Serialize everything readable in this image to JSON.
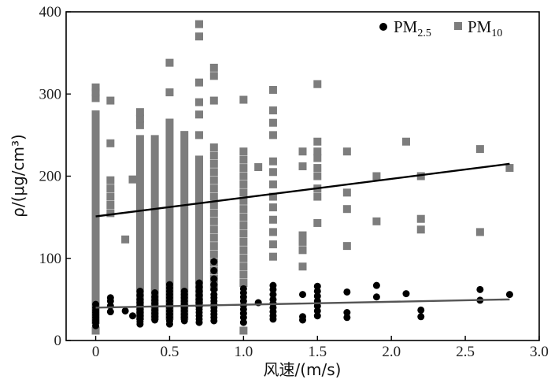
{
  "chart_data": {
    "type": "scatter",
    "xlabel": "风速/(m/s)",
    "ylabel": "ρ/(μg/cm³)",
    "xlim": [
      -0.2,
      3.0
    ],
    "ylim": [
      0,
      400
    ],
    "xticks": [
      "0",
      "0.5",
      "1.0",
      "1.5",
      "2.0",
      "2.5",
      "3.0"
    ],
    "xtick_values": [
      0,
      0.5,
      1.0,
      1.5,
      2.0,
      2.5,
      3.0
    ],
    "yticks": [
      "0",
      "100",
      "200",
      "300",
      "400"
    ],
    "ytick_values": [
      0,
      100,
      200,
      300,
      400
    ],
    "grid": false,
    "legend_position": "top-right",
    "series": [
      {
        "name": "PM2.5",
        "legend_main": "PM",
        "legend_sub": "2.5",
        "marker": "circle",
        "color": "#000000",
        "points": [
          [
            0,
            18
          ],
          [
            0,
            22
          ],
          [
            0,
            25
          ],
          [
            0,
            28
          ],
          [
            0,
            31
          ],
          [
            0,
            34
          ],
          [
            0,
            37
          ],
          [
            0,
            40
          ],
          [
            0,
            44
          ],
          [
            0.1,
            35
          ],
          [
            0.1,
            42
          ],
          [
            0.1,
            48
          ],
          [
            0.1,
            52
          ],
          [
            0.2,
            36
          ],
          [
            0.25,
            30
          ],
          [
            0.3,
            20
          ],
          [
            0.3,
            23
          ],
          [
            0.3,
            26
          ],
          [
            0.3,
            30
          ],
          [
            0.3,
            34
          ],
          [
            0.3,
            38
          ],
          [
            0.3,
            42
          ],
          [
            0.3,
            46
          ],
          [
            0.3,
            50
          ],
          [
            0.3,
            55
          ],
          [
            0.3,
            60
          ],
          [
            0.4,
            25
          ],
          [
            0.4,
            29
          ],
          [
            0.4,
            33
          ],
          [
            0.4,
            37
          ],
          [
            0.4,
            41
          ],
          [
            0.4,
            45
          ],
          [
            0.4,
            49
          ],
          [
            0.4,
            53
          ],
          [
            0.4,
            58
          ],
          [
            0.5,
            20
          ],
          [
            0.5,
            24
          ],
          [
            0.5,
            28
          ],
          [
            0.5,
            32
          ],
          [
            0.5,
            36
          ],
          [
            0.5,
            40
          ],
          [
            0.5,
            44
          ],
          [
            0.5,
            48
          ],
          [
            0.5,
            52
          ],
          [
            0.5,
            56
          ],
          [
            0.5,
            60
          ],
          [
            0.5,
            64
          ],
          [
            0.5,
            68
          ],
          [
            0.6,
            24
          ],
          [
            0.6,
            28
          ],
          [
            0.6,
            32
          ],
          [
            0.6,
            36
          ],
          [
            0.6,
            40
          ],
          [
            0.6,
            44
          ],
          [
            0.6,
            48
          ],
          [
            0.6,
            52
          ],
          [
            0.6,
            56
          ],
          [
            0.6,
            60
          ],
          [
            0.7,
            22
          ],
          [
            0.7,
            26
          ],
          [
            0.7,
            30
          ],
          [
            0.7,
            34
          ],
          [
            0.7,
            38
          ],
          [
            0.7,
            42
          ],
          [
            0.7,
            46
          ],
          [
            0.7,
            50
          ],
          [
            0.7,
            55
          ],
          [
            0.7,
            60
          ],
          [
            0.7,
            65
          ],
          [
            0.7,
            70
          ],
          [
            0.8,
            24
          ],
          [
            0.8,
            28
          ],
          [
            0.8,
            32
          ],
          [
            0.8,
            36
          ],
          [
            0.8,
            40
          ],
          [
            0.8,
            44
          ],
          [
            0.8,
            48
          ],
          [
            0.8,
            52
          ],
          [
            0.8,
            56
          ],
          [
            0.8,
            62
          ],
          [
            0.8,
            68
          ],
          [
            0.8,
            75
          ],
          [
            0.8,
            85
          ],
          [
            0.8,
            96
          ],
          [
            1.0,
            22
          ],
          [
            1.0,
            28
          ],
          [
            1.0,
            33
          ],
          [
            1.0,
            38
          ],
          [
            1.0,
            43
          ],
          [
            1.0,
            48
          ],
          [
            1.0,
            53
          ],
          [
            1.0,
            58
          ],
          [
            1.0,
            63
          ],
          [
            1.1,
            46
          ],
          [
            1.2,
            26
          ],
          [
            1.2,
            30
          ],
          [
            1.2,
            35
          ],
          [
            1.2,
            40
          ],
          [
            1.2,
            45
          ],
          [
            1.2,
            50
          ],
          [
            1.2,
            56
          ],
          [
            1.2,
            62
          ],
          [
            1.2,
            67
          ],
          [
            1.4,
            25
          ],
          [
            1.4,
            29
          ],
          [
            1.4,
            56
          ],
          [
            1.5,
            30
          ],
          [
            1.5,
            36
          ],
          [
            1.5,
            42
          ],
          [
            1.5,
            48
          ],
          [
            1.5,
            54
          ],
          [
            1.5,
            60
          ],
          [
            1.5,
            66
          ],
          [
            1.7,
            28
          ],
          [
            1.7,
            34
          ],
          [
            1.7,
            59
          ],
          [
            1.9,
            53
          ],
          [
            1.9,
            67
          ],
          [
            2.1,
            57
          ],
          [
            2.2,
            29
          ],
          [
            2.2,
            37
          ],
          [
            2.6,
            49
          ],
          [
            2.6,
            62
          ],
          [
            2.8,
            56
          ]
        ]
      },
      {
        "name": "PM10",
        "legend_main": "PM",
        "legend_sub": "10",
        "marker": "square",
        "color": "#7d7d7d",
        "points": [
          [
            0,
            12
          ],
          [
            0,
            295
          ],
          [
            0,
            302
          ],
          [
            0,
            308
          ],
          [
            0.1,
            240
          ],
          [
            0.1,
            292
          ],
          [
            0.1,
            155
          ],
          [
            0.1,
            165
          ],
          [
            0.1,
            175
          ],
          [
            0.1,
            185
          ],
          [
            0.1,
            195
          ],
          [
            0.2,
            123
          ],
          [
            0.25,
            196
          ],
          [
            0.3,
            262
          ],
          [
            0.3,
            270
          ],
          [
            0.3,
            278
          ],
          [
            0.5,
            302
          ],
          [
            0.5,
            338
          ],
          [
            0.7,
            370
          ],
          [
            0.7,
            385
          ],
          [
            0.7,
            314
          ],
          [
            0.7,
            290
          ],
          [
            0.7,
            275
          ],
          [
            0.7,
            250
          ],
          [
            0.8,
            292
          ],
          [
            0.8,
            322
          ],
          [
            0.8,
            332
          ],
          [
            0.8,
            235
          ],
          [
            0.8,
            225
          ],
          [
            0.8,
            215
          ],
          [
            0.8,
            205
          ],
          [
            0.8,
            195
          ],
          [
            0.8,
            185
          ],
          [
            0.8,
            175
          ],
          [
            0.8,
            165
          ],
          [
            0.8,
            155
          ],
          [
            0.8,
            145
          ],
          [
            0.8,
            135
          ],
          [
            0.8,
            125
          ],
          [
            0.8,
            115
          ],
          [
            0.8,
            105
          ],
          [
            0.8,
            95
          ],
          [
            0.8,
            85
          ],
          [
            0.8,
            75
          ],
          [
            0.8,
            65
          ],
          [
            1.0,
            12
          ],
          [
            1.0,
            293
          ],
          [
            1.0,
            230
          ],
          [
            1.0,
            220
          ],
          [
            1.0,
            210
          ],
          [
            1.0,
            200
          ],
          [
            1.0,
            190
          ],
          [
            1.0,
            180
          ],
          [
            1.0,
            170
          ],
          [
            1.0,
            160
          ],
          [
            1.0,
            150
          ],
          [
            1.0,
            140
          ],
          [
            1.0,
            130
          ],
          [
            1.0,
            120
          ],
          [
            1.0,
            110
          ],
          [
            1.0,
            100
          ],
          [
            1.0,
            90
          ],
          [
            1.0,
            80
          ],
          [
            1.0,
            70
          ],
          [
            1.1,
            211
          ],
          [
            1.2,
            305
          ],
          [
            1.2,
            280
          ],
          [
            1.2,
            265
          ],
          [
            1.2,
            250
          ],
          [
            1.2,
            218
          ],
          [
            1.2,
            205
          ],
          [
            1.2,
            190
          ],
          [
            1.2,
            175
          ],
          [
            1.2,
            162
          ],
          [
            1.2,
            147
          ],
          [
            1.2,
            132
          ],
          [
            1.2,
            117
          ],
          [
            1.2,
            102
          ],
          [
            1.4,
            230
          ],
          [
            1.4,
            212
          ],
          [
            1.4,
            128
          ],
          [
            1.4,
            120
          ],
          [
            1.4,
            110
          ],
          [
            1.4,
            90
          ],
          [
            1.5,
            312
          ],
          [
            1.5,
            242
          ],
          [
            1.5,
            230
          ],
          [
            1.5,
            222
          ],
          [
            1.5,
            210
          ],
          [
            1.5,
            200
          ],
          [
            1.5,
            185
          ],
          [
            1.5,
            175
          ],
          [
            1.5,
            143
          ],
          [
            1.7,
            230
          ],
          [
            1.7,
            180
          ],
          [
            1.7,
            160
          ],
          [
            1.7,
            115
          ],
          [
            1.9,
            200
          ],
          [
            1.9,
            145
          ],
          [
            2.1,
            242
          ],
          [
            2.2,
            200
          ],
          [
            2.2,
            148
          ],
          [
            2.2,
            135
          ],
          [
            2.6,
            233
          ],
          [
            2.6,
            132
          ],
          [
            2.8,
            210
          ]
        ],
        "columns": [
          {
            "x": 0,
            "from": 20,
            "to": 280
          },
          {
            "x": 0.3,
            "from": 25,
            "to": 250
          },
          {
            "x": 0.4,
            "from": 25,
            "to": 250
          },
          {
            "x": 0.5,
            "from": 25,
            "to": 270
          },
          {
            "x": 0.6,
            "from": 25,
            "to": 255
          },
          {
            "x": 0.7,
            "from": 40,
            "to": 225
          }
        ]
      }
    ],
    "trendlines": [
      {
        "series": "PM10",
        "from": [
          0,
          151
        ],
        "to": [
          2.8,
          215
        ],
        "color": "#000000"
      },
      {
        "series": "PM2.5",
        "from": [
          0,
          40
        ],
        "to": [
          2.8,
          50
        ],
        "color": "#555555"
      }
    ]
  }
}
